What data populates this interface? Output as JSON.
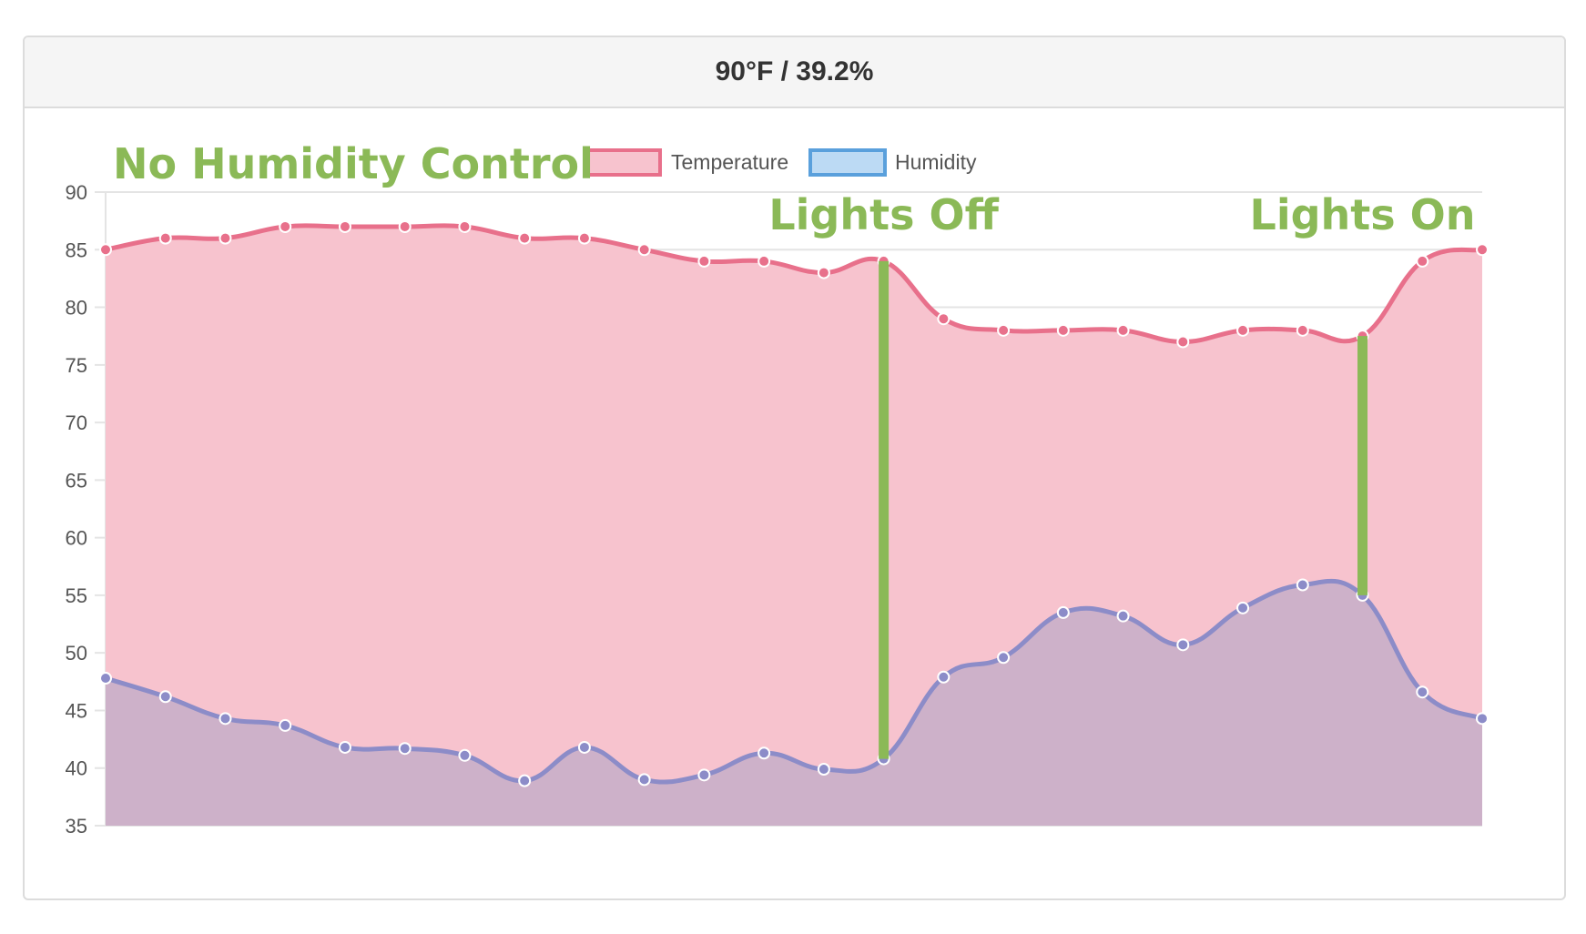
{
  "header": {
    "title": "90°F / 39.2%"
  },
  "chart_data": {
    "type": "area",
    "title": "",
    "xlabel": "",
    "ylabel": "",
    "ylim": [
      35,
      90
    ],
    "yticks": [
      35,
      40,
      45,
      50,
      55,
      60,
      65,
      70,
      75,
      80,
      85,
      90
    ],
    "grid": true,
    "legend_position": "top",
    "series": [
      {
        "name": "Temperature",
        "line_color": "#e8708b",
        "fill_color": "#f7c3ce",
        "values": [
          85,
          86,
          86,
          87,
          87,
          87,
          87,
          86,
          86,
          85,
          84,
          84,
          83,
          84,
          79,
          78,
          78,
          78,
          77,
          78,
          78,
          77.5,
          84,
          85
        ]
      },
      {
        "name": "Humidity",
        "line_color": "#8c8cc8",
        "fill_color": "#c6aec8",
        "legend_line_color": "#5aa0dc",
        "legend_fill_color": "#bcdaf4",
        "values": [
          47.8,
          46.2,
          44.3,
          43.7,
          41.8,
          41.7,
          41.1,
          38.9,
          41.8,
          39.0,
          39.4,
          41.3,
          39.9,
          40.8,
          47.9,
          49.6,
          53.5,
          53.2,
          50.7,
          53.9,
          55.9,
          55.0,
          46.6,
          44.3
        ]
      }
    ],
    "markers": [
      {
        "label": "Lights Off",
        "index": 13,
        "color": "#8bb957"
      },
      {
        "label": "Lights On",
        "index": 21,
        "color": "#8bb957"
      }
    ],
    "annotations": {
      "main": "No Humidity Control"
    }
  }
}
